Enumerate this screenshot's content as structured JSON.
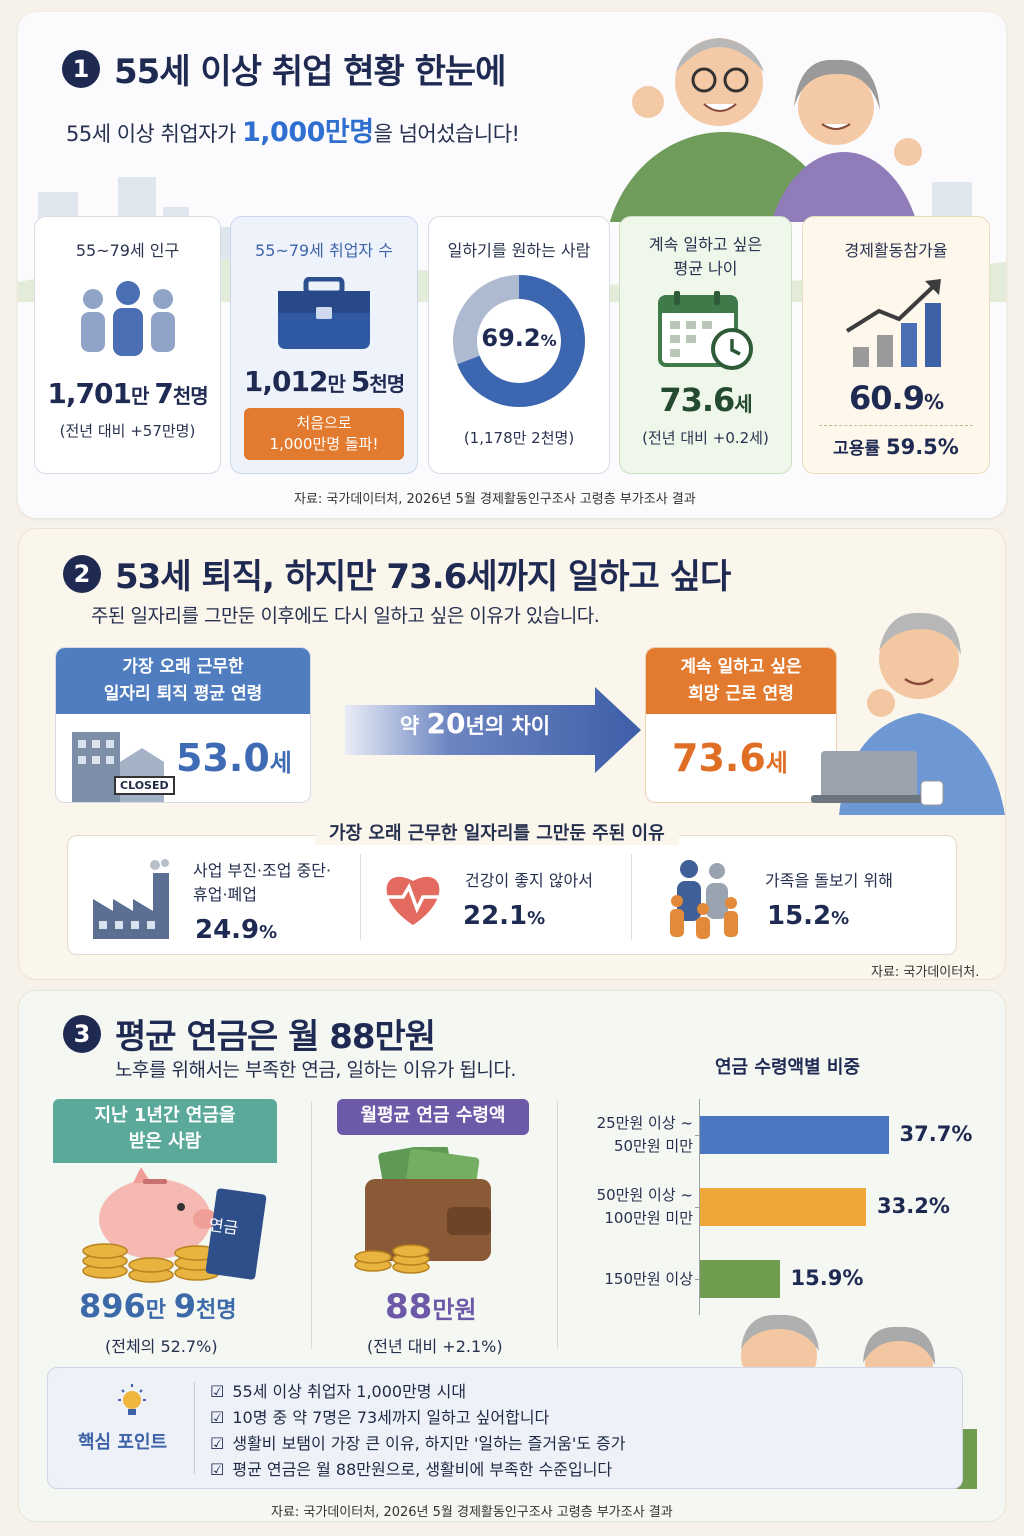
{
  "section1": {
    "num": "1",
    "title": "55세 이상 취업 현황 한눈에",
    "subtitle_pre": "55세 이상 취업자가 ",
    "subtitle_hl": "1,000만명",
    "subtitle_post": "을 넘어섰습니다!",
    "cards": [
      {
        "label": "55~79세 인구",
        "big_a": "1,701",
        "big_b": "만 ",
        "big_c": "7",
        "big_d": "천명",
        "note": "(전년 대비 +57만명)"
      },
      {
        "label": "55~79세 취업자 수",
        "big_a": "1,012",
        "big_b": "만 ",
        "big_c": "5",
        "big_d": "천명",
        "pill_1": "처음으로",
        "pill_2": "1,000만명 돌파!"
      },
      {
        "label": "일하기를 원하는 사람",
        "donut_value": "69.2",
        "donut_unit": "%",
        "donut_fraction": 0.692,
        "note": "(1,178만 2천명)"
      },
      {
        "label_1": "계속 일하고 싶은",
        "label_2": "평균 나이",
        "big": "73.6",
        "unit": "세",
        "note": "(전년 대비 +0.2세)"
      },
      {
        "label": "경제활동참가율",
        "big": "60.9",
        "unit": "%",
        "sub_label": "고용률 ",
        "sub_val": "59.5%"
      }
    ],
    "source": "자료: 국가데이터처, 2026년 5월 경제활동인구조사 고령층 부가조사 결과"
  },
  "section2": {
    "num": "2",
    "title": "53세 퇴직, 하지만 73.6세까지 일하고 싶다",
    "subtitle": "주된 일자리를 그만둔 이후에도 다시 일하고 싶은 이유가 있습니다.",
    "left_head_1": "가장 오래 근무한",
    "left_head_2": "일자리 퇴직 평균 연령",
    "left_val": "53.0",
    "left_unit": "세",
    "closed": "CLOSED",
    "arrow_pre": "약 ",
    "arrow_num": "20",
    "arrow_post": "년의 차이",
    "right_head_1": "계속 일하고 싶은",
    "right_head_2": "희망 근로 연령",
    "right_val": "73.6",
    "right_unit": "세",
    "reasons_title": "가장 오래 근무한 일자리를 그만둔 주된 이유",
    "reasons": [
      {
        "label_1": "사업 부진·조업 중단·",
        "label_2": "휴업·폐업",
        "val": "24.9",
        "unit": "%"
      },
      {
        "label_1": "건강이 좋지 않아서",
        "val": "22.1",
        "unit": "%"
      },
      {
        "label_1": "가족을 돌보기 위해",
        "val": "15.2",
        "unit": "%"
      }
    ],
    "source": "자료: 국가데이터처."
  },
  "section3": {
    "num": "3",
    "title": "평균 연금은 월 88만원",
    "subtitle": "노후를 위해서는 부족한 연금, 일하는 이유가 됩니다.",
    "left_head_1": "지난 1년간 연금을",
    "left_head_2": "받은 사람",
    "book_label": "연금",
    "left_val_a": "896",
    "left_val_b": "만 ",
    "left_val_c": "9",
    "left_val_d": "천명",
    "left_note": "(전체의 52.7%)",
    "mid_head": "월평균 연금 수령액",
    "mid_val": "88",
    "mid_unit": "만원",
    "mid_note": "(전년 대비 +2.1%)",
    "chart_title": "연금 수령액별 비중",
    "key_title": "핵심 포인트",
    "key_points": [
      "55세 이상 취업자 1,000만명 시대",
      "10명 중 약 7명은 73세까지 일하고 싶어합니다",
      "생활비 보탬이 가장 큰 이유, 하지만 '일하는 즐거움'도 증가",
      "평균 연금은 월 88만원으로, 생활비에 부족한 수준입니다"
    ],
    "source": "자료: 국가데이터처, 2026년 5월 경제활동인구조사 고령층 부가조사 결과"
  },
  "colors": {
    "navy": "#1f2a52",
    "blue": "#4a77c0",
    "orange": "#e8a341",
    "green": "#6f9c4f",
    "accent_orange": "#e27b2f",
    "teal": "#5aa99a",
    "purple": "#6c5aa8"
  },
  "chart_data": {
    "type": "bar",
    "orientation": "horizontal",
    "title": "연금 수령액별 비중",
    "categories": [
      "25만원 이상 ~ 50만원 미만",
      "50만원 이상 ~ 100만원 미만",
      "150만원 이상"
    ],
    "category_lines": [
      [
        "25만원 이상 ~",
        "50만원 미만"
      ],
      [
        "50만원 이상 ~",
        "100만원 미만"
      ],
      [
        "150만원 이상"
      ]
    ],
    "values": [
      37.7,
      33.2,
      15.9
    ],
    "value_labels": [
      "37.7%",
      "33.2%",
      "15.9%"
    ],
    "bar_colors": [
      "#4a77c0",
      "#f0a73a",
      "#6f9c4f"
    ],
    "xlim": [
      0,
      40
    ]
  }
}
